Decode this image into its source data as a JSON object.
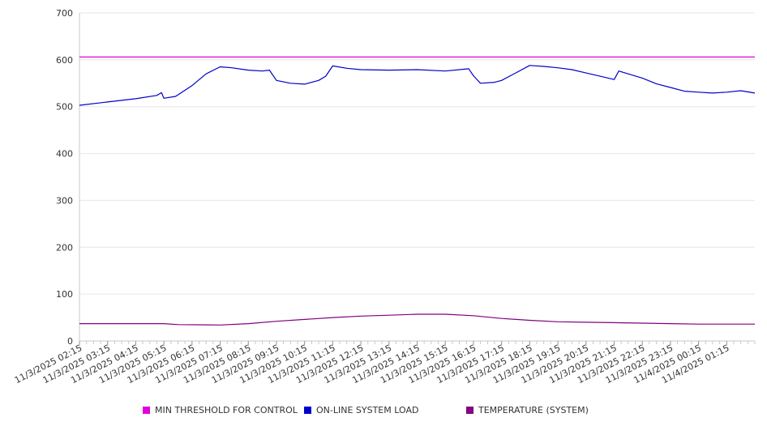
{
  "chart_data": {
    "type": "line",
    "title": "",
    "xlabel": "",
    "ylabel": "",
    "ylim": [
      0,
      700
    ],
    "yticks": [
      0,
      100,
      200,
      300,
      400,
      500,
      600,
      700
    ],
    "grid": true,
    "legend_position": "bottom",
    "x_start": "11/3/2025 02:15",
    "x_end": "11/4/2025 02:15",
    "x_tick_labels": [
      "11/3/2025 02:15",
      "11/3/2025 03:15",
      "11/3/2025 04:15",
      "11/3/2025 05:15",
      "11/3/2025 06:15",
      "11/3/2025 07:15",
      "11/3/2025 08:15",
      "11/3/2025 09:15",
      "11/3/2025 10:15",
      "11/3/2025 11:15",
      "11/3/2025 12:15",
      "11/3/2025 13:15",
      "11/3/2025 14:15",
      "11/3/2025 15:15",
      "11/3/2025 16:15",
      "11/3/2025 17:15",
      "11/3/2025 18:15",
      "11/3/2025 19:15",
      "11/3/2025 20:15",
      "11/3/2025 21:15",
      "11/3/2025 22:15",
      "11/3/2025 23:15",
      "11/4/2025 00:15",
      "11/4/2025 01:15"
    ],
    "series": [
      {
        "name": "MIN THRESHOLD FOR CONTROL",
        "color": "#e000e0",
        "points": [
          {
            "x": "11/3/2025 02:15",
            "y": 606
          },
          {
            "x": "11/4/2025 02:15",
            "y": 606
          }
        ]
      },
      {
        "name": "ON-LINE SYSTEM LOAD",
        "color": "#0000cc",
        "points": [
          {
            "x": "11/3/2025 02:15",
            "y": 503
          },
          {
            "x": "11/3/2025 03:15",
            "y": 510
          },
          {
            "x": "11/3/2025 04:15",
            "y": 517
          },
          {
            "x": "11/3/2025 05:00",
            "y": 524
          },
          {
            "x": "11/3/2025 05:10",
            "y": 530
          },
          {
            "x": "11/3/2025 05:15",
            "y": 518
          },
          {
            "x": "11/3/2025 05:40",
            "y": 522
          },
          {
            "x": "11/3/2025 06:15",
            "y": 545
          },
          {
            "x": "11/3/2025 06:45",
            "y": 570
          },
          {
            "x": "11/3/2025 07:15",
            "y": 585
          },
          {
            "x": "11/3/2025 07:40",
            "y": 583
          },
          {
            "x": "11/3/2025 08:15",
            "y": 578
          },
          {
            "x": "11/3/2025 08:45",
            "y": 576
          },
          {
            "x": "11/3/2025 09:00",
            "y": 578
          },
          {
            "x": "11/3/2025 09:15",
            "y": 556
          },
          {
            "x": "11/3/2025 09:45",
            "y": 550
          },
          {
            "x": "11/3/2025 10:15",
            "y": 548
          },
          {
            "x": "11/3/2025 10:45",
            "y": 556
          },
          {
            "x": "11/3/2025 11:00",
            "y": 565
          },
          {
            "x": "11/3/2025 11:15",
            "y": 587
          },
          {
            "x": "11/3/2025 11:45",
            "y": 582
          },
          {
            "x": "11/3/2025 12:15",
            "y": 579
          },
          {
            "x": "11/3/2025 13:15",
            "y": 578
          },
          {
            "x": "11/3/2025 14:15",
            "y": 579
          },
          {
            "x": "11/3/2025 15:15",
            "y": 576
          },
          {
            "x": "11/3/2025 16:05",
            "y": 581
          },
          {
            "x": "11/3/2025 16:15",
            "y": 566
          },
          {
            "x": "11/3/2025 16:30",
            "y": 550
          },
          {
            "x": "11/3/2025 17:00",
            "y": 552
          },
          {
            "x": "11/3/2025 17:15",
            "y": 556
          },
          {
            "x": "11/3/2025 17:45",
            "y": 572
          },
          {
            "x": "11/3/2025 18:15",
            "y": 588
          },
          {
            "x": "11/3/2025 18:45",
            "y": 586
          },
          {
            "x": "11/3/2025 19:15",
            "y": 583
          },
          {
            "x": "11/3/2025 19:45",
            "y": 579
          },
          {
            "x": "11/3/2025 20:15",
            "y": 572
          },
          {
            "x": "11/3/2025 20:45",
            "y": 565
          },
          {
            "x": "11/3/2025 21:15",
            "y": 558
          },
          {
            "x": "11/3/2025 21:25",
            "y": 576
          },
          {
            "x": "11/3/2025 21:45",
            "y": 570
          },
          {
            "x": "11/3/2025 22:15",
            "y": 561
          },
          {
            "x": "11/3/2025 22:45",
            "y": 549
          },
          {
            "x": "11/3/2025 23:15",
            "y": 541
          },
          {
            "x": "11/3/2025 23:45",
            "y": 533
          },
          {
            "x": "11/4/2025 00:15",
            "y": 531
          },
          {
            "x": "11/4/2025 00:45",
            "y": 529
          },
          {
            "x": "11/4/2025 01:15",
            "y": 531
          },
          {
            "x": "11/4/2025 01:45",
            "y": 534
          },
          {
            "x": "11/4/2025 02:15",
            "y": 529
          }
        ]
      },
      {
        "name": "TEMPERATURE (SYSTEM)",
        "color": "#800080",
        "points": [
          {
            "x": "11/3/2025 02:15",
            "y": 37
          },
          {
            "x": "11/3/2025 05:15",
            "y": 37
          },
          {
            "x": "11/3/2025 05:45",
            "y": 35
          },
          {
            "x": "11/3/2025 07:15",
            "y": 34
          },
          {
            "x": "11/3/2025 08:15",
            "y": 37
          },
          {
            "x": "11/3/2025 09:15",
            "y": 42
          },
          {
            "x": "11/3/2025 10:15",
            "y": 46
          },
          {
            "x": "11/3/2025 11:15",
            "y": 50
          },
          {
            "x": "11/3/2025 12:15",
            "y": 53
          },
          {
            "x": "11/3/2025 13:15",
            "y": 55
          },
          {
            "x": "11/3/2025 14:15",
            "y": 57
          },
          {
            "x": "11/3/2025 15:15",
            "y": 57
          },
          {
            "x": "11/3/2025 16:15",
            "y": 54
          },
          {
            "x": "11/3/2025 17:15",
            "y": 48
          },
          {
            "x": "11/3/2025 18:15",
            "y": 44
          },
          {
            "x": "11/3/2025 19:15",
            "y": 41
          },
          {
            "x": "11/3/2025 20:15",
            "y": 40
          },
          {
            "x": "11/3/2025 21:15",
            "y": 39
          },
          {
            "x": "11/3/2025 22:15",
            "y": 38
          },
          {
            "x": "11/3/2025 23:15",
            "y": 37
          },
          {
            "x": "11/4/2025 00:15",
            "y": 36
          },
          {
            "x": "11/4/2025 01:15",
            "y": 36
          },
          {
            "x": "11/4/2025 02:15",
            "y": 36
          }
        ]
      }
    ]
  },
  "legend": [
    {
      "label": "MIN THRESHOLD FOR CONTROL",
      "color": "#e000e0"
    },
    {
      "label": "ON-LINE SYSTEM LOAD",
      "color": "#0000cc"
    },
    {
      "label": "TEMPERATURE (SYSTEM)",
      "color": "#800080"
    }
  ]
}
